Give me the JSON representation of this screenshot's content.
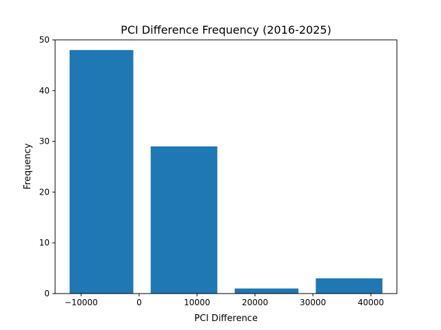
{
  "chart_data": {
    "type": "bar",
    "title": "PCI Difference Frequency (2016-2025)",
    "xlabel": "PCI Difference",
    "ylabel": "Frequency",
    "bars": [
      {
        "x_start": -12000,
        "x_end": -1000,
        "value": 48
      },
      {
        "x_start": 2000,
        "x_end": 13500,
        "value": 29
      },
      {
        "x_start": 16500,
        "x_end": 27500,
        "value": 1
      },
      {
        "x_start": 30500,
        "x_end": 42000,
        "value": 3
      }
    ],
    "xlim": [
      -14500,
      44500
    ],
    "ylim": [
      0,
      50
    ],
    "xticks": [
      -10000,
      0,
      10000,
      20000,
      30000,
      40000
    ],
    "xtick_labels": [
      "−10000",
      "0",
      "10000",
      "20000",
      "30000",
      "40000"
    ],
    "yticks": [
      0,
      10,
      20,
      30,
      40,
      50
    ],
    "ytick_labels": [
      "0",
      "10",
      "20",
      "30",
      "40",
      "50"
    ],
    "bar_color": "#1f77b4",
    "grid": false,
    "legend": "none"
  }
}
